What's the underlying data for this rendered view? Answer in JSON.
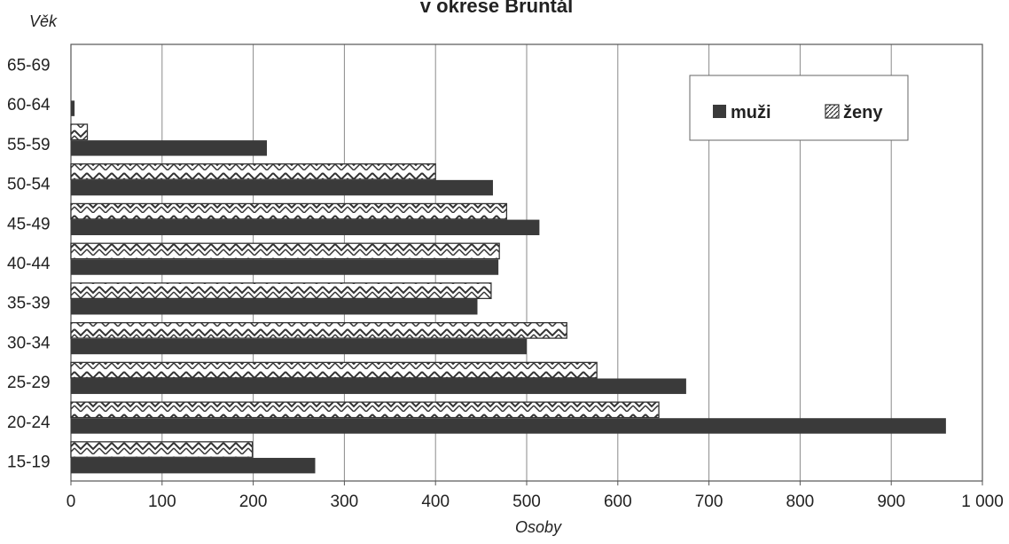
{
  "chart_data": {
    "type": "bar",
    "orientation": "horizontal",
    "title": "v okrese Bruntál",
    "xlabel": "Osoby",
    "ylabel": "Věk",
    "xlim": [
      0,
      1000
    ],
    "x_ticks": [
      0,
      100,
      200,
      300,
      400,
      500,
      600,
      700,
      800,
      900,
      1000
    ],
    "x_tick_labels": [
      "0",
      "100",
      "200",
      "300",
      "400",
      "500",
      "600",
      "700",
      "800",
      "900",
      "1 000"
    ],
    "categories": [
      "65-69",
      "60-64",
      "55-59",
      "50-54",
      "45-49",
      "40-44",
      "35-39",
      "30-34",
      "25-29",
      "20-24",
      "15-19"
    ],
    "series": [
      {
        "name": "muži",
        "color": "#3a3a3a",
        "pattern": "solid",
        "values": [
          0,
          4,
          215,
          463,
          514,
          469,
          446,
          500,
          675,
          960,
          268
        ]
      },
      {
        "name": "ženy",
        "color": "#3a3a3a",
        "pattern": "zigzag",
        "values": [
          0,
          0,
          18,
          400,
          478,
          470,
          461,
          544,
          577,
          645,
          199
        ]
      }
    ],
    "grid": "vertical",
    "legend_position": "top-right"
  }
}
